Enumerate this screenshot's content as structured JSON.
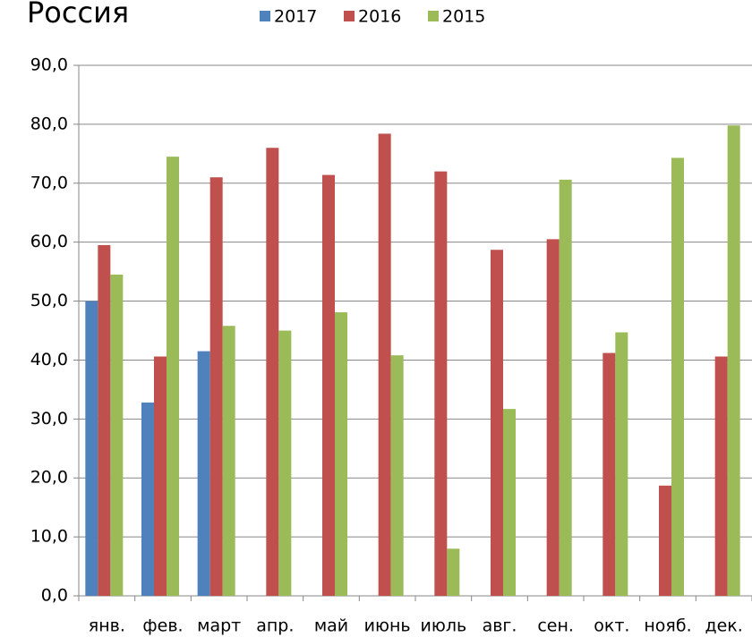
{
  "chart_data": {
    "type": "bar",
    "title": "Россия",
    "categories": [
      "янв.",
      "фев.",
      "март",
      "апр.",
      "май",
      "июнь",
      "июль",
      "авг.",
      "сен.",
      "окт.",
      "нояб.",
      "дек."
    ],
    "series": [
      {
        "name": "2017",
        "color": "#4f81bd",
        "values": [
          50.0,
          32.8,
          41.5,
          null,
          null,
          null,
          null,
          null,
          null,
          null,
          null,
          null
        ]
      },
      {
        "name": "2016",
        "color": "#c0504d",
        "values": [
          59.5,
          40.6,
          71.0,
          76.0,
          71.4,
          78.4,
          72.0,
          58.7,
          60.5,
          41.2,
          18.7,
          40.6
        ]
      },
      {
        "name": "2015",
        "color": "#9bbb59",
        "values": [
          54.5,
          74.5,
          45.8,
          45.0,
          48.1,
          40.8,
          8.0,
          31.7,
          70.6,
          44.7,
          74.3,
          79.8
        ]
      }
    ],
    "ylim": [
      0,
      90
    ],
    "yticks": [
      {
        "value": 0,
        "label": "0,0"
      },
      {
        "value": 10,
        "label": "10,0"
      },
      {
        "value": 20,
        "label": "20,0"
      },
      {
        "value": 30,
        "label": "30,0"
      },
      {
        "value": 40,
        "label": "40,0"
      },
      {
        "value": 50,
        "label": "50,0"
      },
      {
        "value": 60,
        "label": "60,0"
      },
      {
        "value": 70,
        "label": "70,0"
      },
      {
        "value": 80,
        "label": "80,0"
      },
      {
        "value": 90,
        "label": "90,0"
      }
    ],
    "grid": true
  }
}
